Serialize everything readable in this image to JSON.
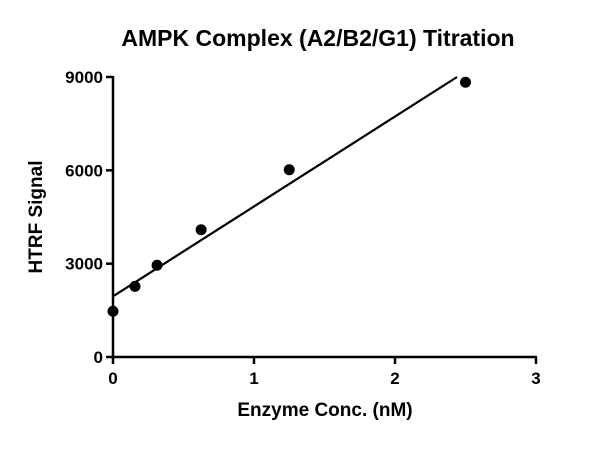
{
  "chart_data": {
    "type": "scatter",
    "title": "AMPK Complex (A2/B2/G1) Titration",
    "xlabel": "Enzyme Conc. (nM)",
    "ylabel": "HTRF Signal",
    "xlim": [
      0,
      3
    ],
    "ylim": [
      0,
      9000
    ],
    "xticks": [
      "0",
      "1",
      "2",
      "3"
    ],
    "yticks": [
      "0",
      "3000",
      "6000",
      "9000"
    ],
    "grid": false,
    "legend": "none",
    "points": [
      {
        "x": 0,
        "y": 1470
      },
      {
        "x": 0.156,
        "y": 2270
      },
      {
        "x": 0.3125,
        "y": 2950
      },
      {
        "x": 0.625,
        "y": 4090
      },
      {
        "x": 1.25,
        "y": 6020
      },
      {
        "x": 2.5,
        "y": 8830
      }
    ],
    "fit_line": {
      "type": "linear",
      "x": [
        0,
        2.44
      ],
      "y": [
        1950,
        9000
      ]
    },
    "color": "#000000"
  }
}
